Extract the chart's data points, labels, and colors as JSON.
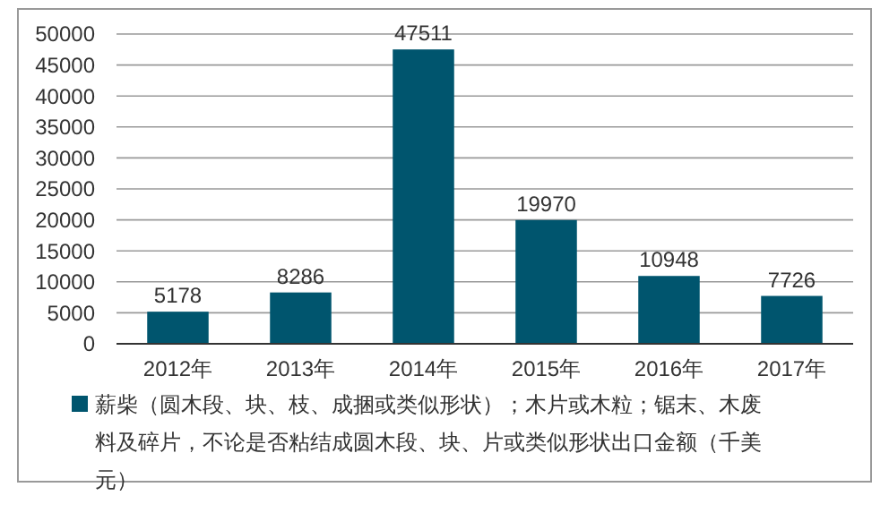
{
  "chart_data": {
    "type": "bar",
    "categories": [
      "2012年",
      "2013年",
      "2014年",
      "2015年",
      "2016年",
      "2017年"
    ],
    "series": [
      {
        "name": "薪柴（圆木段、块、枝、成捆或类似形状）；木片或木粒；锯末、木废料及碎片，不论是否粘结成圆木段、块、片或类似形状出口金额（千美元）",
        "color": "#00556e",
        "values": [
          5178,
          8286,
          47511,
          19970,
          10948,
          7726
        ]
      }
    ],
    "ylim": [
      0,
      50000
    ],
    "yticks": [
      0,
      5000,
      10000,
      15000,
      20000,
      25000,
      30000,
      35000,
      40000,
      45000,
      50000
    ],
    "grid": "y",
    "legend": "bottom",
    "data_labels": true
  }
}
